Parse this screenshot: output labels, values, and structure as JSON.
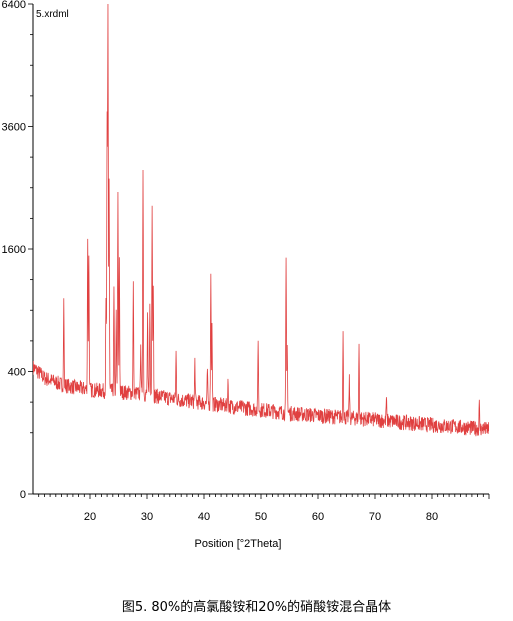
{
  "caption": "图5. 80%的高氯酸铵和20%的硝酸铵混合晶体",
  "chart_data": {
    "type": "line",
    "file_label": "5.xrdml",
    "title": "",
    "xlabel": "Position [°2Theta]",
    "ylabel": "",
    "xlim": [
      10,
      90
    ],
    "ylim": [
      0,
      6400
    ],
    "y_scale": "sqrt",
    "x_ticks": [
      20,
      30,
      40,
      50,
      60,
      70,
      80
    ],
    "y_ticks": [
      0,
      400,
      1600,
      3600,
      6400
    ],
    "line_color": "#e04040",
    "grid": false,
    "background": [
      [
        10,
        430
      ],
      [
        12,
        360
      ],
      [
        15,
        320
      ],
      [
        18,
        300
      ],
      [
        20,
        290
      ],
      [
        25,
        280
      ],
      [
        30,
        265
      ],
      [
        35,
        240
      ],
      [
        40,
        222
      ],
      [
        45,
        205
      ],
      [
        50,
        190
      ],
      [
        55,
        175
      ],
      [
        60,
        165
      ],
      [
        65,
        157
      ],
      [
        70,
        148
      ],
      [
        75,
        138
      ],
      [
        80,
        128
      ],
      [
        85,
        120
      ],
      [
        90,
        112
      ]
    ],
    "peaks": [
      {
        "x": 15.4,
        "y": 1000
      },
      {
        "x": 19.6,
        "y": 1760
      },
      {
        "x": 19.8,
        "y": 1500
      },
      {
        "x": 22.8,
        "y": 1000
      },
      {
        "x": 23.0,
        "y": 3800
      },
      {
        "x": 23.15,
        "y": 6400
      },
      {
        "x": 23.35,
        "y": 2650
      },
      {
        "x": 24.2,
        "y": 1130
      },
      {
        "x": 24.6,
        "y": 870
      },
      {
        "x": 24.9,
        "y": 2400
      },
      {
        "x": 25.15,
        "y": 1500
      },
      {
        "x": 27.6,
        "y": 1180
      },
      {
        "x": 28.9,
        "y": 630
      },
      {
        "x": 29.3,
        "y": 2800
      },
      {
        "x": 30.1,
        "y": 870
      },
      {
        "x": 30.5,
        "y": 1000
      },
      {
        "x": 30.9,
        "y": 2250
      },
      {
        "x": 31.1,
        "y": 1180
      },
      {
        "x": 35.1,
        "y": 540
      },
      {
        "x": 38.4,
        "y": 480
      },
      {
        "x": 40.6,
        "y": 420
      },
      {
        "x": 41.2,
        "y": 1280
      },
      {
        "x": 41.4,
        "y": 760
      },
      {
        "x": 44.2,
        "y": 350
      },
      {
        "x": 49.5,
        "y": 650
      },
      {
        "x": 54.4,
        "y": 1460
      },
      {
        "x": 54.6,
        "y": 620
      },
      {
        "x": 64.4,
        "y": 710
      },
      {
        "x": 65.5,
        "y": 360
      },
      {
        "x": 67.2,
        "y": 600
      },
      {
        "x": 72.0,
        "y": 250
      },
      {
        "x": 88.3,
        "y": 220
      }
    ]
  }
}
